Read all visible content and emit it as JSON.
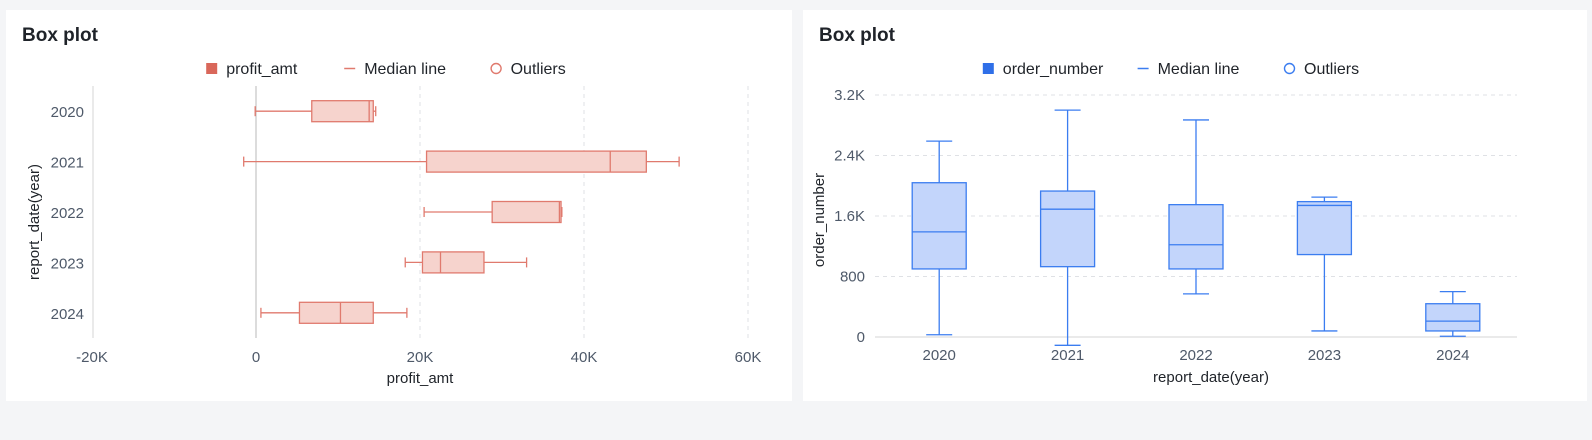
{
  "charts": [
    {
      "title": "Box plot",
      "legend": {
        "series": "profit_amt",
        "median": "Median line",
        "outliers": "Outliers"
      },
      "colors": {
        "stroke": "#e07a6e",
        "fill": "#f6d3cd",
        "legend_series": "#d9675a"
      }
    },
    {
      "title": "Box plot",
      "legend": {
        "series": "order_number",
        "median": "Median line",
        "outliers": "Outliers"
      },
      "colors": {
        "stroke": "#3b7df0",
        "fill": "#c3d5fb",
        "legend_series": "#2f6fe8"
      }
    }
  ],
  "chart_data": [
    {
      "type": "boxplot",
      "orientation": "horizontal",
      "title": "Box plot",
      "xlabel": "profit_amt",
      "ylabel": "report_date(year)",
      "xlim": [
        -20000,
        60000
      ],
      "x_ticks": [
        -20000,
        0,
        20000,
        40000,
        60000
      ],
      "x_tick_labels": [
        "-20K",
        "0",
        "20K",
        "40K",
        "60K"
      ],
      "grid": "vertical dashed",
      "legend_position": "top",
      "categories": [
        "2020",
        "2021",
        "2022",
        "2023",
        "2024"
      ],
      "boxes": [
        {
          "category": "2020",
          "min": -100,
          "q1": 6800,
          "median": 13800,
          "q3": 14300,
          "max": 14600
        },
        {
          "category": "2021",
          "min": -1500,
          "q1": 20800,
          "median": 43200,
          "q3": 47600,
          "max": 51600
        },
        {
          "category": "2022",
          "min": 20500,
          "q1": 28800,
          "median": 37000,
          "q3": 37200,
          "max": 37300
        },
        {
          "category": "2023",
          "min": 18200,
          "q1": 20300,
          "median": 22500,
          "q3": 27800,
          "max": 33000
        },
        {
          "category": "2024",
          "min": 600,
          "q1": 5300,
          "median": 10300,
          "q3": 14300,
          "max": 18400
        }
      ]
    },
    {
      "type": "boxplot",
      "orientation": "vertical",
      "title": "Box plot",
      "xlabel": "report_date(year)",
      "ylabel": "order_number",
      "ylim": [
        0,
        3200
      ],
      "y_ticks": [
        0,
        800,
        1600,
        2400,
        3200
      ],
      "y_tick_labels": [
        "0",
        "800",
        "1.6K",
        "2.4K",
        "3.2K"
      ],
      "grid": "horizontal dashed",
      "legend_position": "top",
      "categories": [
        "2020",
        "2021",
        "2022",
        "2023",
        "2024"
      ],
      "boxes": [
        {
          "category": "2020",
          "min": 30,
          "q1": 900,
          "median": 1390,
          "q3": 2040,
          "max": 2590
        },
        {
          "category": "2021",
          "min": -110,
          "q1": 930,
          "median": 1690,
          "q3": 1930,
          "max": 3000
        },
        {
          "category": "2022",
          "min": 570,
          "q1": 900,
          "median": 1220,
          "q3": 1750,
          "max": 2870
        },
        {
          "category": "2023",
          "min": 80,
          "q1": 1090,
          "median": 1740,
          "q3": 1790,
          "max": 1850
        },
        {
          "category": "2024",
          "min": 10,
          "q1": 80,
          "median": 210,
          "q3": 440,
          "max": 600
        }
      ]
    }
  ]
}
